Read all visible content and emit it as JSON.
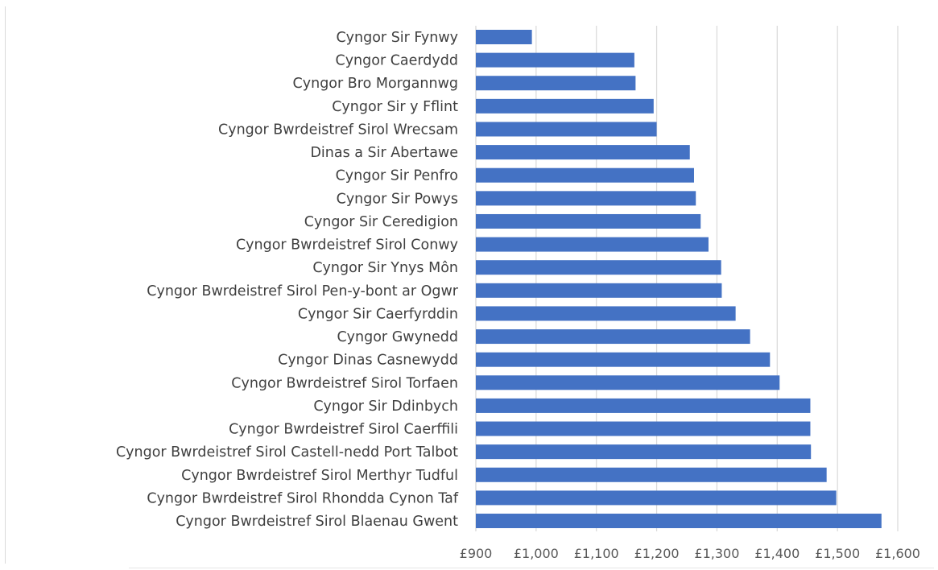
{
  "chart_data": {
    "type": "bar",
    "orientation": "horizontal",
    "categories": [
      "Cyngor Sir Fynwy",
      "Cyngor Caerdydd",
      "Cyngor Bro Morgannwg",
      "Cyngor Sir y Fflint",
      "Cyngor Bwrdeistref Sirol Wrecsam",
      "Dinas a Sir Abertawe",
      "Cyngor Sir Penfro",
      "Cyngor Sir Powys",
      "Cyngor Sir Ceredigion",
      "Cyngor Bwrdeistref Sirol Conwy",
      "Cyngor Sir Ynys Môn",
      "Cyngor Bwrdeistref Sirol Pen-y-bont ar Ogwr",
      "Cyngor Sir Caerfyrddin",
      "Cyngor Gwynedd",
      "Cyngor Dinas Casnewydd",
      "Cyngor Bwrdeistref Sirol Torfaen",
      "Cyngor Sir Ddinbych",
      "Cyngor Bwrdeistref Sirol Caerffili",
      "Cyngor Bwrdeistref Sirol Castell-nedd Port Talbot",
      "Cyngor Bwrdeistref Sirol Merthyr Tudful",
      "Cyngor Bwrdeistref Sirol Rhondda Cynon Taf",
      "Cyngor Bwrdeistref Sirol Blaenau Gwent"
    ],
    "values": [
      993,
      1163,
      1165,
      1195,
      1200,
      1255,
      1262,
      1265,
      1273,
      1286,
      1307,
      1308,
      1331,
      1355,
      1388,
      1404,
      1455,
      1455,
      1456,
      1482,
      1498,
      1573
    ],
    "xlim": [
      900,
      1600
    ],
    "x_ticks": [
      900,
      1000,
      1100,
      1200,
      1300,
      1400,
      1500,
      1600
    ],
    "x_tick_labels": [
      "£900",
      "£1,000",
      "£1,100",
      "£1,200",
      "£1,300",
      "£1,400",
      "£1,500",
      "£1,600"
    ],
    "grid": "vertical",
    "legend": "none",
    "colors": {
      "bar": "#4472c4",
      "grid": "#d9d9d9",
      "text": "#404040"
    }
  }
}
